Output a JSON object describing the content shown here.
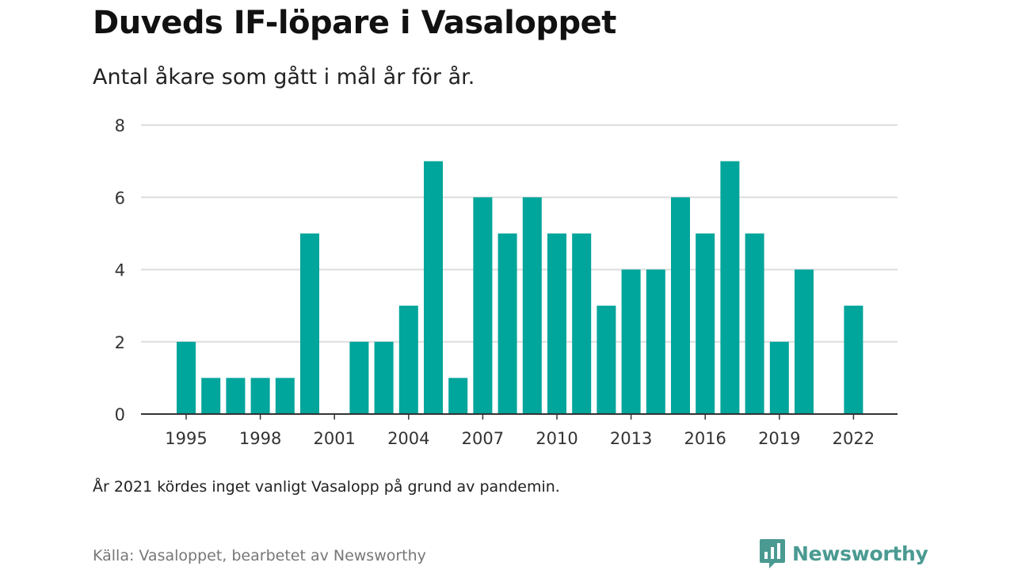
{
  "header": {
    "title": "Duveds IF-löpare i Vasaloppet",
    "subtitle": "Antal åkare som gått i mål år för år."
  },
  "footer": {
    "note": "År 2021 kördes inget vanligt Vasalopp på grund av pandemin.",
    "source": "Källa: Vasaloppet, bearbetet av Newsworthy",
    "brand": "Newsworthy",
    "brand_icon": "bar-chart-speech-bubble-icon"
  },
  "colors": {
    "bar": "#00a59b",
    "gridline": "#dddddd",
    "axis": "#333333",
    "brand": "#4a9a92"
  },
  "chart_data": {
    "type": "bar",
    "title": "Duveds IF-löpare i Vasaloppet",
    "subtitle": "Antal åkare som gått i mål år för år.",
    "xlabel": "",
    "ylabel": "",
    "categories": [
      1995,
      1996,
      1997,
      1998,
      1999,
      2000,
      2001,
      2002,
      2003,
      2004,
      2005,
      2006,
      2007,
      2008,
      2009,
      2010,
      2011,
      2012,
      2013,
      2014,
      2015,
      2016,
      2017,
      2018,
      2019,
      2020,
      2021,
      2022
    ],
    "values": [
      2,
      1,
      1,
      1,
      1,
      5,
      0,
      2,
      2,
      3,
      7,
      1,
      6,
      5,
      6,
      5,
      5,
      3,
      4,
      4,
      6,
      5,
      7,
      5,
      2,
      4,
      null,
      3
    ],
    "x_tick_labels": [
      "1995",
      "1998",
      "2001",
      "2004",
      "2007",
      "2010",
      "2013",
      "2016",
      "2019",
      "2022"
    ],
    "y_tick_labels": [
      "0",
      "2",
      "4",
      "6",
      "8"
    ],
    "ylim": [
      0,
      8
    ],
    "grid": true,
    "legend": "none"
  }
}
